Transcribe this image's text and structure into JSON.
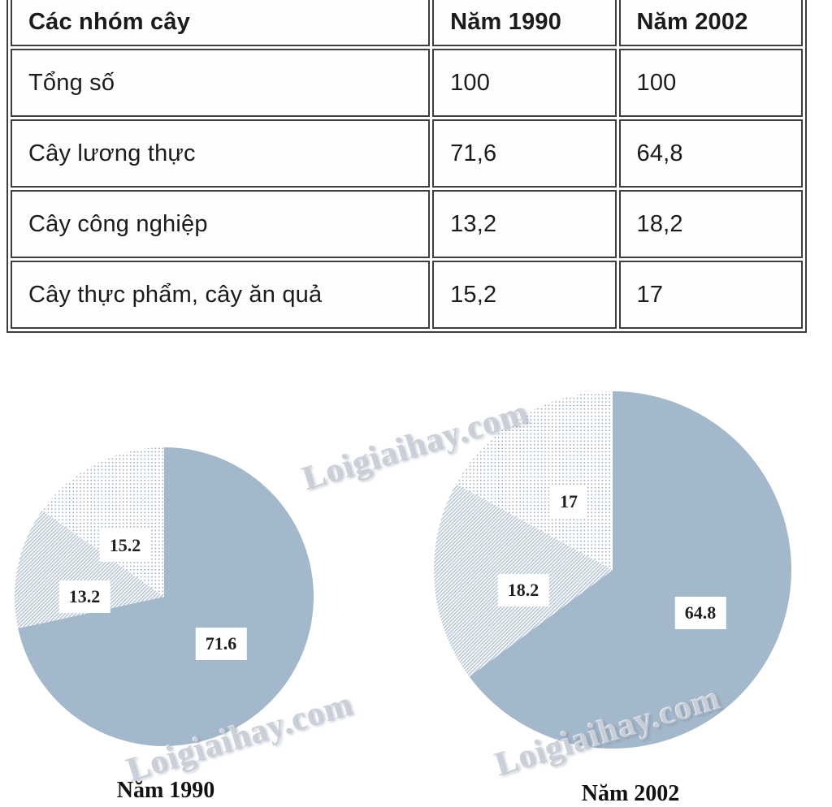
{
  "table": {
    "headers": [
      "Các nhóm cây",
      "Năm 1990",
      "Năm 2002"
    ],
    "rows": [
      {
        "label": "Tổng số",
        "y1990": "100",
        "y2002": "100"
      },
      {
        "label": "Cây lương thực",
        "y1990": "71,6",
        "y2002": "64,8"
      },
      {
        "label": "Cây công nghiệp",
        "y1990": "13,2",
        "y2002": "18,2"
      },
      {
        "label": "Cây thực phẩm, cây ăn quả",
        "y1990": "15,2",
        "y2002": "17"
      }
    ]
  },
  "chart_data": [
    {
      "type": "pie",
      "title": "Năm 1990",
      "start_angle_deg": 0,
      "direction": "clockwise",
      "total": 100,
      "slices": [
        {
          "name": "Cây lương thực",
          "value": 71.6,
          "label": "71.6",
          "pattern": "solid"
        },
        {
          "name": "Cây công nghiệp",
          "value": 13.2,
          "label": "13.2",
          "pattern": "diagonal-hatch"
        },
        {
          "name": "Cây thực phẩm, cây ăn quả",
          "value": 15.2,
          "label": "15.2",
          "pattern": "dots"
        }
      ]
    },
    {
      "type": "pie",
      "title": "Năm 2002",
      "start_angle_deg": 0,
      "direction": "clockwise",
      "total": 100,
      "slices": [
        {
          "name": "Cây lương thực",
          "value": 64.8,
          "label": "64.8",
          "pattern": "solid"
        },
        {
          "name": "Cây công nghiệp",
          "value": 18.2,
          "label": "18.2",
          "pattern": "diagonal-hatch"
        },
        {
          "name": "Cây thực phẩm, cây ăn quả",
          "value": 17,
          "label": "17",
          "pattern": "dots"
        }
      ]
    }
  ],
  "watermark": {
    "text": "Loigiaihay.com"
  },
  "colors": {
    "pie_solid": "#a3b8ca",
    "hatch_line": "#b6c4d3",
    "dot": "#90a1b1",
    "table_border": "#3e3e3e",
    "text": "#1b1b1b",
    "watermark": "#c5cad4"
  }
}
